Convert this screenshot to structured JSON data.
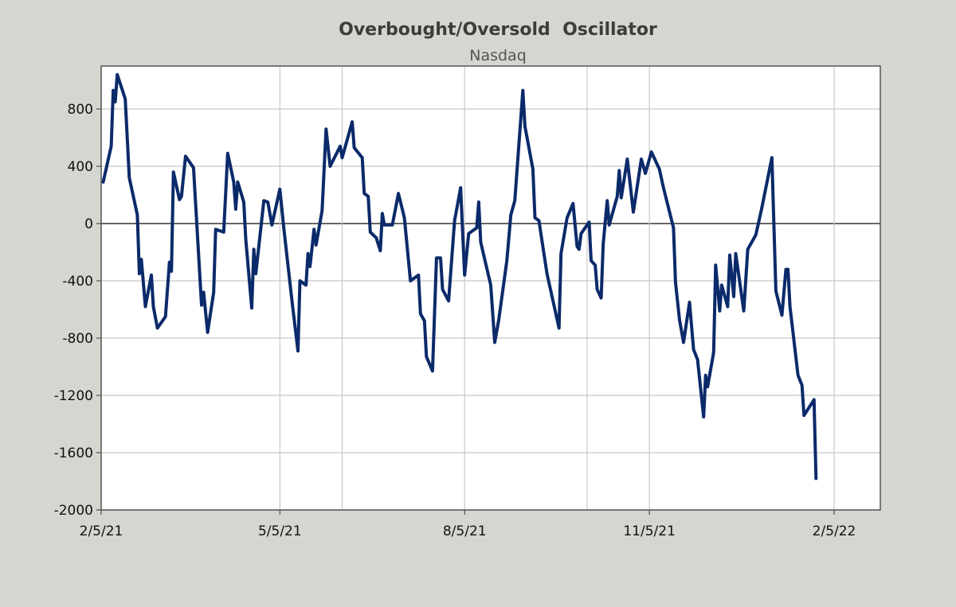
{
  "chart_data": {
    "type": "line",
    "title": "Overbought/Oversold  Oscillator",
    "subtitle": "Nasdaq",
    "xlabel": "",
    "ylabel": "",
    "x_units": "days since 2/5/21",
    "xlim": [
      0,
      388
    ],
    "ylim": [
      -2000,
      1100
    ],
    "grid": true,
    "y_ticks": [
      800,
      400,
      0,
      -400,
      -800,
      -1200,
      -1600,
      -2000
    ],
    "y_tick_labels": [
      "800",
      "400",
      "0",
      "-400",
      "-800",
      "-1200",
      "-1600",
      "-2000"
    ],
    "x_ticks": [
      0,
      89,
      181,
      273,
      365
    ],
    "x_tick_labels": [
      "2/5/21",
      "5/5/21",
      "8/5/21",
      "11/5/21",
      "2/5/22"
    ],
    "x_gridlines": [
      0,
      89,
      120,
      181,
      242,
      273,
      365
    ],
    "colors": {
      "line": "#0b2a6a",
      "background": "#d3d7cf",
      "plot": "#ffffff",
      "grid": "#c8c8c8"
    },
    "series": [
      {
        "name": "Nasdaq",
        "points": [
          [
            1,
            290
          ],
          [
            5,
            540
          ],
          [
            6,
            930
          ],
          [
            7,
            850
          ],
          [
            8,
            1040
          ],
          [
            12,
            870
          ],
          [
            14,
            320
          ],
          [
            18,
            60
          ],
          [
            19,
            -350
          ],
          [
            20,
            -250
          ],
          [
            22,
            -580
          ],
          [
            25,
            -360
          ],
          [
            26,
            -580
          ],
          [
            28,
            -730
          ],
          [
            32,
            -650
          ],
          [
            34,
            -270
          ],
          [
            35,
            -333
          ],
          [
            36,
            360
          ],
          [
            39,
            167
          ],
          [
            40,
            190
          ],
          [
            42,
            470
          ],
          [
            46,
            390
          ],
          [
            50,
            -570
          ],
          [
            51,
            -480
          ],
          [
            53,
            -760
          ],
          [
            56,
            -480
          ],
          [
            57,
            -40
          ],
          [
            61,
            -60
          ],
          [
            63,
            490
          ],
          [
            66,
            290
          ],
          [
            67,
            100
          ],
          [
            68,
            290
          ],
          [
            71,
            150
          ],
          [
            72,
            -110
          ],
          [
            75,
            -590
          ],
          [
            76,
            -180
          ],
          [
            77,
            -350
          ],
          [
            81,
            160
          ],
          [
            83,
            150
          ],
          [
            85,
            -10
          ],
          [
            89,
            240
          ],
          [
            91,
            -40
          ],
          [
            95,
            -540
          ],
          [
            98,
            -890
          ],
          [
            99,
            -400
          ],
          [
            102,
            -430
          ],
          [
            103,
            -210
          ],
          [
            104,
            -300
          ],
          [
            106,
            -40
          ],
          [
            107,
            -150
          ],
          [
            110,
            90
          ],
          [
            112,
            660
          ],
          [
            114,
            400
          ],
          [
            119,
            540
          ],
          [
            120,
            460
          ],
          [
            125,
            710
          ],
          [
            126,
            530
          ],
          [
            130,
            460
          ],
          [
            131,
            210
          ],
          [
            133,
            190
          ],
          [
            134,
            -60
          ],
          [
            137,
            -100
          ],
          [
            139,
            -190
          ],
          [
            140,
            70
          ],
          [
            141,
            -10
          ],
          [
            145,
            -10
          ],
          [
            148,
            210
          ],
          [
            151,
            40
          ],
          [
            154,
            -400
          ],
          [
            158,
            -360
          ],
          [
            159,
            -630
          ],
          [
            161,
            -680
          ],
          [
            162,
            -930
          ],
          [
            165,
            -1030
          ],
          [
            167,
            -240
          ],
          [
            169,
            -240
          ],
          [
            170,
            -460
          ],
          [
            173,
            -540
          ],
          [
            176,
            20
          ],
          [
            179,
            250
          ],
          [
            181,
            -360
          ],
          [
            183,
            -70
          ],
          [
            187,
            -30
          ],
          [
            188,
            150
          ],
          [
            189,
            -130
          ],
          [
            194,
            -430
          ],
          [
            196,
            -830
          ],
          [
            198,
            -670
          ],
          [
            202,
            -260
          ],
          [
            204,
            60
          ],
          [
            206,
            160
          ],
          [
            210,
            930
          ],
          [
            211,
            680
          ],
          [
            215,
            380
          ],
          [
            216,
            40
          ],
          [
            218,
            20
          ],
          [
            222,
            -350
          ],
          [
            228,
            -730
          ],
          [
            229,
            -210
          ],
          [
            232,
            40
          ],
          [
            235,
            140
          ],
          [
            237,
            -160
          ],
          [
            238,
            -180
          ],
          [
            239,
            -70
          ],
          [
            243,
            10
          ],
          [
            244,
            -260
          ],
          [
            246,
            -290
          ],
          [
            247,
            -460
          ],
          [
            249,
            -520
          ],
          [
            250,
            -140
          ],
          [
            252,
            160
          ],
          [
            253,
            -10
          ],
          [
            257,
            190
          ],
          [
            258,
            370
          ],
          [
            259,
            180
          ],
          [
            262,
            450
          ],
          [
            265,
            80
          ],
          [
            269,
            450
          ],
          [
            271,
            350
          ],
          [
            274,
            500
          ],
          [
            278,
            380
          ],
          [
            280,
            250
          ],
          [
            285,
            -30
          ],
          [
            286,
            -410
          ],
          [
            288,
            -670
          ],
          [
            290,
            -830
          ],
          [
            293,
            -550
          ],
          [
            295,
            -880
          ],
          [
            297,
            -950
          ],
          [
            300,
            -1350
          ],
          [
            301,
            -1060
          ],
          [
            302,
            -1140
          ],
          [
            305,
            -900
          ],
          [
            306,
            -290
          ],
          [
            308,
            -610
          ],
          [
            309,
            -430
          ],
          [
            312,
            -580
          ],
          [
            313,
            -220
          ],
          [
            315,
            -510
          ],
          [
            316,
            -210
          ],
          [
            320,
            -610
          ],
          [
            322,
            -180
          ],
          [
            326,
            -80
          ],
          [
            329,
            110
          ],
          [
            334,
            460
          ],
          [
            336,
            -470
          ],
          [
            339,
            -640
          ],
          [
            341,
            -320
          ],
          [
            342,
            -320
          ],
          [
            343,
            -580
          ],
          [
            347,
            -1060
          ],
          [
            349,
            -1130
          ],
          [
            350,
            -1340
          ],
          [
            355,
            -1230
          ],
          [
            356,
            -1780
          ]
        ]
      }
    ]
  }
}
